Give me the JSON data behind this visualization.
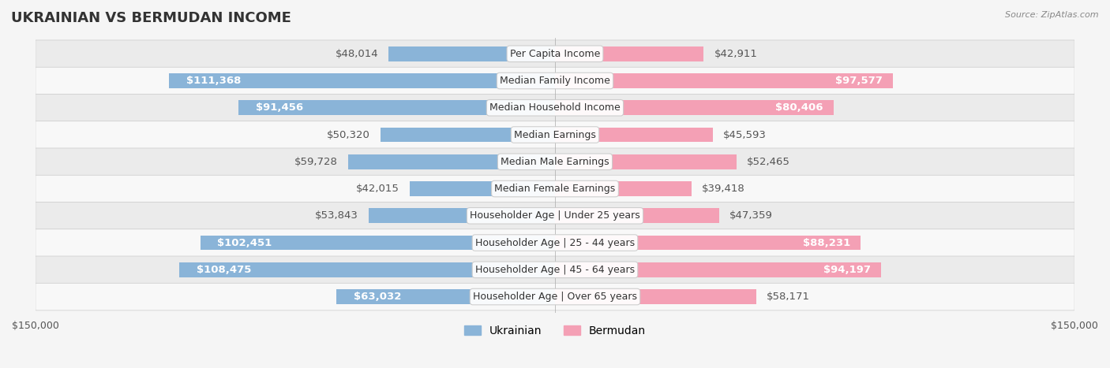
{
  "title": "UKRAINIAN VS BERMUDAN INCOME",
  "source": "Source: ZipAtlas.com",
  "categories": [
    "Per Capita Income",
    "Median Family Income",
    "Median Household Income",
    "Median Earnings",
    "Median Male Earnings",
    "Median Female Earnings",
    "Householder Age | Under 25 years",
    "Householder Age | 25 - 44 years",
    "Householder Age | 45 - 64 years",
    "Householder Age | Over 65 years"
  ],
  "ukrainian_values": [
    48014,
    111368,
    91456,
    50320,
    59728,
    42015,
    53843,
    102451,
    108475,
    63032
  ],
  "bermudan_values": [
    42911,
    97577,
    80406,
    45593,
    52465,
    39418,
    47359,
    88231,
    94197,
    58171
  ],
  "ukrainian_labels": [
    "$48,014",
    "$111,368",
    "$91,456",
    "$50,320",
    "$59,728",
    "$42,015",
    "$53,843",
    "$102,451",
    "$108,475",
    "$63,032"
  ],
  "bermudan_labels": [
    "$42,911",
    "$97,577",
    "$80,406",
    "$45,593",
    "$52,465",
    "$39,418",
    "$47,359",
    "$88,231",
    "$94,197",
    "$58,171"
  ],
  "ukrainian_color": "#8ab4d8",
  "bermudan_color": "#f4a0b5",
  "ukrainian_color_dark": "#5b9bd5",
  "bermudan_color_dark": "#f06292",
  "max_value": 150000,
  "background_color": "#f5f5f5",
  "row_bg_color": "#ffffff",
  "row_bg_alt": "#f0f0f0",
  "bar_height": 0.55,
  "label_fontsize": 9.5,
  "title_fontsize": 13,
  "axis_label_fontsize": 9,
  "legend_fontsize": 10
}
